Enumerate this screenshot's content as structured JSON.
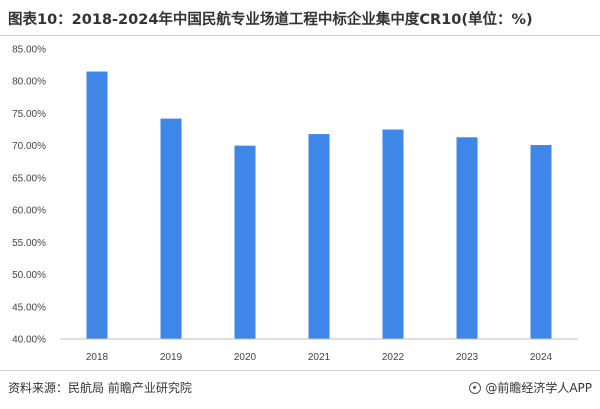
{
  "title": "图表10：2018-2024年中国民航专业场道工程中标企业集中度CR10(单位：%)",
  "source": "资料来源：民航局 前瞻产业研究院",
  "brand": {
    "icon": "qianzhan-logo-icon",
    "label": "@前瞻经济学人APP"
  },
  "colors": {
    "bar": "#3e86e8",
    "axis": "#bfbfbf"
  },
  "chart_data": {
    "type": "bar",
    "categories": [
      "2018",
      "2019",
      "2020",
      "2021",
      "2022",
      "2023",
      "2024"
    ],
    "values": [
      81.5,
      74.2,
      70.0,
      71.8,
      72.5,
      71.3,
      70.1
    ],
    "ylim": [
      40,
      85
    ],
    "yticks": [
      "85.00%",
      "80.00%",
      "75.00%",
      "70.00%",
      "65.00%",
      "60.00%",
      "55.00%",
      "50.00%",
      "45.00%",
      "40.00%"
    ],
    "grid": false,
    "xlabel": "",
    "ylabel": ""
  }
}
